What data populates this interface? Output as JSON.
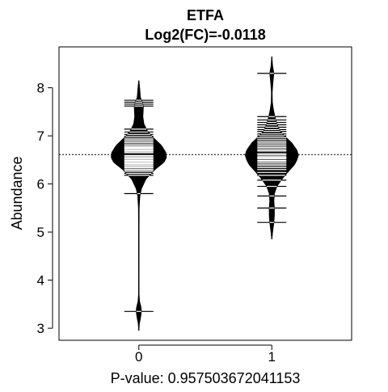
{
  "chart_data": {
    "type": "beanplot",
    "title": "ETFA",
    "subtitle": "Log2(FC)=-0.0118",
    "xlabel": "P-value: 0.957503672041153",
    "ylabel": "Abundance",
    "categories": [
      "0",
      "1"
    ],
    "yticks": [
      3,
      4,
      5,
      6,
      7,
      8
    ],
    "ylim": [
      2.75,
      8.85
    ],
    "xlim": [
      -0.6,
      1.6
    ],
    "overall_mean": 6.61,
    "groups": [
      {
        "category": "0",
        "density_min": 2.95,
        "density_max": 8.15,
        "density_profile": [
          [
            2.95,
            0.0
          ],
          [
            3.1,
            0.01
          ],
          [
            3.2,
            0.03
          ],
          [
            3.3,
            0.045
          ],
          [
            3.38,
            0.05
          ],
          [
            3.45,
            0.04
          ],
          [
            3.55,
            0.015
          ],
          [
            3.7,
            0.004
          ],
          [
            4.0,
            0.003
          ],
          [
            5.0,
            0.004
          ],
          [
            5.5,
            0.006
          ],
          [
            5.75,
            0.02
          ],
          [
            5.9,
            0.05
          ],
          [
            6.1,
            0.14
          ],
          [
            6.3,
            0.32
          ],
          [
            6.45,
            0.5
          ],
          [
            6.55,
            0.55
          ],
          [
            6.65,
            0.54
          ],
          [
            6.8,
            0.45
          ],
          [
            6.95,
            0.3
          ],
          [
            7.1,
            0.17
          ],
          [
            7.25,
            0.1
          ],
          [
            7.4,
            0.08
          ],
          [
            7.6,
            0.09
          ],
          [
            7.7,
            0.07
          ],
          [
            7.8,
            0.03
          ],
          [
            7.95,
            0.02
          ],
          [
            8.1,
            0.006
          ],
          [
            8.15,
            0.0
          ]
        ],
        "observations": [
          3.35,
          5.8,
          6.18,
          6.22,
          6.26,
          6.29,
          6.31,
          6.34,
          6.36,
          6.38,
          6.4,
          6.42,
          6.44,
          6.46,
          6.47,
          6.49,
          6.51,
          6.52,
          6.54,
          6.56,
          6.57,
          6.59,
          6.61,
          6.62,
          6.64,
          6.66,
          6.68,
          6.7,
          6.72,
          6.74,
          6.76,
          6.78,
          6.8,
          6.83,
          6.86,
          6.89,
          6.92,
          6.95,
          6.99,
          7.03,
          7.08,
          7.14,
          7.62,
          7.66,
          7.7,
          7.74
        ]
      },
      {
        "category": "1",
        "density_min": 4.85,
        "density_max": 8.65,
        "density_profile": [
          [
            4.85,
            0.0
          ],
          [
            5.0,
            0.015
          ],
          [
            5.2,
            0.04
          ],
          [
            5.35,
            0.05
          ],
          [
            5.5,
            0.05
          ],
          [
            5.65,
            0.04
          ],
          [
            5.8,
            0.05
          ],
          [
            5.95,
            0.1
          ],
          [
            6.1,
            0.2
          ],
          [
            6.25,
            0.32
          ],
          [
            6.4,
            0.45
          ],
          [
            6.5,
            0.5
          ],
          [
            6.6,
            0.53
          ],
          [
            6.7,
            0.5
          ],
          [
            6.85,
            0.4
          ],
          [
            7.0,
            0.25
          ],
          [
            7.1,
            0.16
          ],
          [
            7.25,
            0.1
          ],
          [
            7.4,
            0.06
          ],
          [
            7.55,
            0.03
          ],
          [
            7.7,
            0.01
          ],
          [
            7.9,
            0.006
          ],
          [
            8.1,
            0.02
          ],
          [
            8.3,
            0.04
          ],
          [
            8.45,
            0.015
          ],
          [
            8.65,
            0.0
          ]
        ],
        "observations": [
          5.2,
          5.5,
          5.75,
          5.95,
          6.08,
          6.18,
          6.24,
          6.3,
          6.34,
          6.38,
          6.41,
          6.44,
          6.47,
          6.49,
          6.52,
          6.54,
          6.56,
          6.58,
          6.61,
          6.63,
          6.66,
          6.68,
          6.7,
          6.73,
          6.76,
          6.79,
          6.82,
          6.85,
          6.88,
          6.92,
          6.96,
          7.0,
          7.04,
          7.09,
          7.13,
          7.18,
          7.23,
          7.28,
          7.33,
          7.4,
          8.3
        ]
      }
    ]
  }
}
